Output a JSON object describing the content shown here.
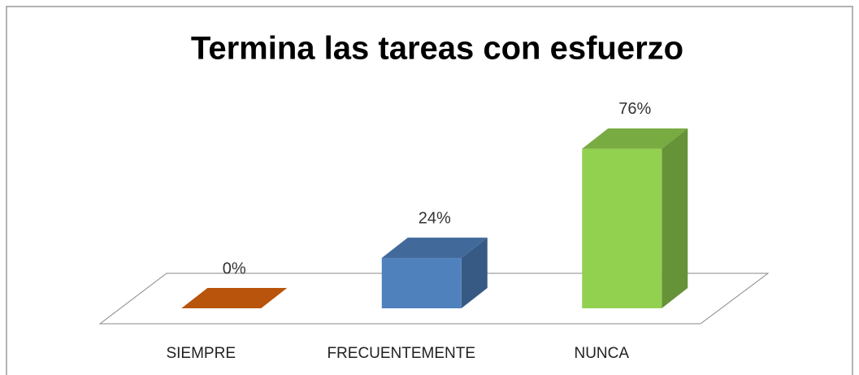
{
  "chart_data": {
    "type": "bar",
    "title": "Termina las tareas con esfuerzo",
    "categories": [
      "SIEMPRE",
      "FRECUENTEMENTE",
      "NUNCA"
    ],
    "values": [
      0,
      24,
      76
    ],
    "value_labels": [
      "0%",
      "24%",
      "76%"
    ],
    "colors": [
      "#b8540c",
      "#4f81bd",
      "#92d050"
    ]
  }
}
